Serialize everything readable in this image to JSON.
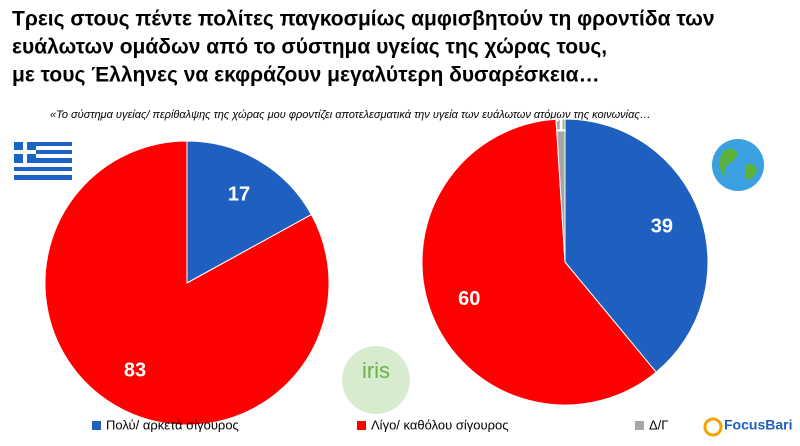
{
  "title_lines": [
    "Τρεις στους πέντε πολίτες παγκοσμίως αμφισβητούν τη φροντίδα των",
    "ευάλωτων ομάδων από το σύστημα υγείας της χώρας τους,",
    "με τους Έλληνες να εκφράζουν μεγαλύτερη δυσαρέσκεια…"
  ],
  "subtitle": "«Το σύστημα υγείας/ περίθαλψης της χώρας μου φροντίζει αποτελεσματικά την υγεία των ευάλωτων ατόμων της κοινωνίας…",
  "unit": "%",
  "legend": [
    {
      "name": "Πολύ/ αρκετά σίγουρος",
      "color": "#1f5fbf"
    },
    {
      "name": "Λίγο/ καθόλου σίγουρος",
      "color": "#ff0000"
    },
    {
      "name": "Δ/Γ",
      "color": "#a6a6a6"
    }
  ],
  "logos": {
    "left": "iris",
    "right": "FocusBari"
  },
  "chart_data": [
    {
      "type": "pie",
      "values": [
        17,
        83
      ],
      "colors": [
        "#1f5fbf",
        "#ff0000"
      ]
    },
    {
      "type": "pie",
      "values": [
        39,
        60,
        1
      ],
      "colors": [
        "#1f5fbf",
        "#ff0000",
        "#a6a6a6"
      ]
    }
  ]
}
